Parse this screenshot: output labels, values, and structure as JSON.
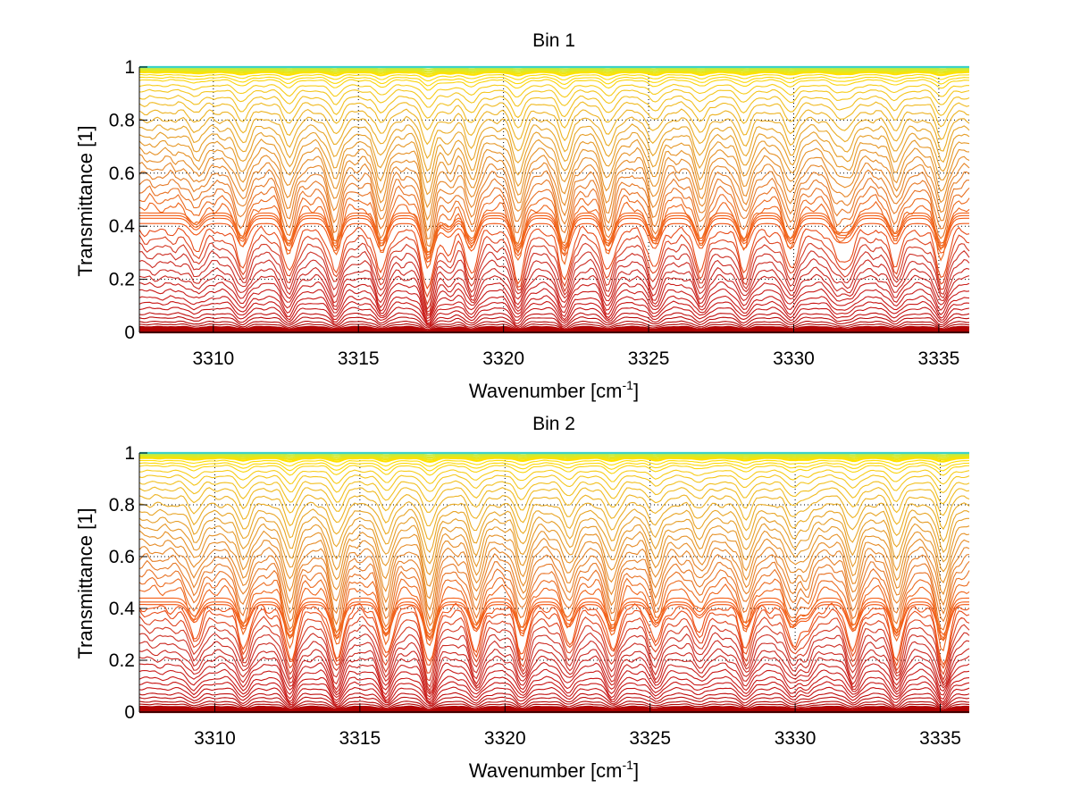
{
  "figure": {
    "background": "#ffffff"
  },
  "chart_data": [
    {
      "type": "line",
      "title": "Bin 1",
      "xlabel": "Wavenumber [cm",
      "xlabel_superscript": "-1",
      "xlabel_suffix": "]",
      "ylabel": "Transmittance [1]",
      "xlim": [
        3307.45,
        3336.05
      ],
      "ylim": [
        0,
        1
      ],
      "xticks": [
        3310,
        3315,
        3320,
        3325,
        3330,
        3335
      ],
      "xtick_labels": [
        "3310",
        "3315",
        "3320",
        "3325",
        "3330",
        "3335"
      ],
      "yticks": [
        0,
        0.2,
        0.4,
        0.6,
        0.8,
        1
      ],
      "ytick_labels": [
        "0",
        "0.2",
        "0.4",
        "0.6",
        "0.8",
        "1"
      ],
      "grid": true,
      "grid_style": "dotted",
      "legend": "none",
      "series_description": "Family of ~60 transmittance spectra (colormap from dark red at low transmittance through orange to yellow/cyan near 1); levels spaced densely near 0 and 1",
      "baseline_levels": [
        0.0,
        0.005,
        0.01,
        0.015,
        0.02,
        0.03,
        0.04,
        0.055,
        0.07,
        0.09,
        0.11,
        0.13,
        0.155,
        0.18,
        0.205,
        0.23,
        0.26,
        0.29,
        0.32,
        0.35,
        0.38,
        0.41,
        0.43,
        0.44,
        0.45,
        0.47,
        0.5,
        0.53,
        0.56,
        0.59,
        0.62,
        0.65,
        0.68,
        0.71,
        0.74,
        0.77,
        0.8,
        0.83,
        0.86,
        0.885,
        0.91,
        0.93,
        0.95,
        0.96,
        0.97,
        0.98,
        0.985,
        0.99,
        0.995,
        1.0
      ],
      "absorption_lines_cm1": [
        3309.4,
        3311.0,
        3312.6,
        3314.2,
        3315.8,
        3317.4,
        3318.1,
        3318.9,
        3320.5,
        3322.1,
        3323.6,
        3325.2,
        3326.8,
        3328.3,
        3329.9,
        3331.5,
        3331.9,
        3333.5,
        3335.1
      ],
      "line_depths": [
        0.25,
        0.5,
        0.6,
        0.6,
        0.6,
        0.85,
        0.3,
        0.6,
        0.7,
        0.7,
        0.6,
        0.55,
        0.55,
        0.55,
        0.55,
        0.35,
        0.35,
        0.45,
        0.65
      ]
    },
    {
      "type": "line",
      "title": "Bin 2",
      "xlabel": "Wavenumber [cm",
      "xlabel_superscript": "-1",
      "xlabel_suffix": "]",
      "ylabel": "Transmittance [1]",
      "xlim": [
        3307.4,
        3336.0
      ],
      "ylim": [
        0,
        1
      ],
      "xticks": [
        3310,
        3315,
        3320,
        3325,
        3330,
        3335
      ],
      "xtick_labels": [
        "3310",
        "3315",
        "3320",
        "3325",
        "3330",
        "3335"
      ],
      "yticks": [
        0,
        0.2,
        0.4,
        0.6,
        0.8,
        1
      ],
      "ytick_labels": [
        "0",
        "0.2",
        "0.4",
        "0.6",
        "0.8",
        "1"
      ],
      "grid": true,
      "grid_style": "dotted",
      "legend": "none",
      "series_description": "Family of ~60 transmittance spectra, same colormap as Bin 1, lines slightly shifted",
      "baseline_levels": [
        0.0,
        0.005,
        0.01,
        0.015,
        0.02,
        0.03,
        0.04,
        0.055,
        0.07,
        0.09,
        0.11,
        0.13,
        0.155,
        0.18,
        0.205,
        0.23,
        0.26,
        0.29,
        0.32,
        0.35,
        0.38,
        0.4,
        0.415,
        0.425,
        0.44,
        0.47,
        0.5,
        0.53,
        0.56,
        0.59,
        0.62,
        0.65,
        0.68,
        0.71,
        0.74,
        0.77,
        0.8,
        0.83,
        0.86,
        0.885,
        0.91,
        0.93,
        0.95,
        0.96,
        0.97,
        0.98,
        0.985,
        0.99,
        0.995,
        1.0
      ],
      "absorption_lines_cm1": [
        3309.3,
        3311.0,
        3312.6,
        3314.2,
        3315.9,
        3317.4,
        3319.0,
        3320.6,
        3322.2,
        3323.7,
        3325.2,
        3326.7,
        3328.3,
        3329.9,
        3330.4,
        3332.0,
        3333.5,
        3335.1
      ],
      "line_depths": [
        0.4,
        0.55,
        0.75,
        0.75,
        0.7,
        0.8,
        0.6,
        0.65,
        0.5,
        0.6,
        0.5,
        0.3,
        0.55,
        0.5,
        0.35,
        0.6,
        0.7,
        0.8
      ]
    }
  ]
}
